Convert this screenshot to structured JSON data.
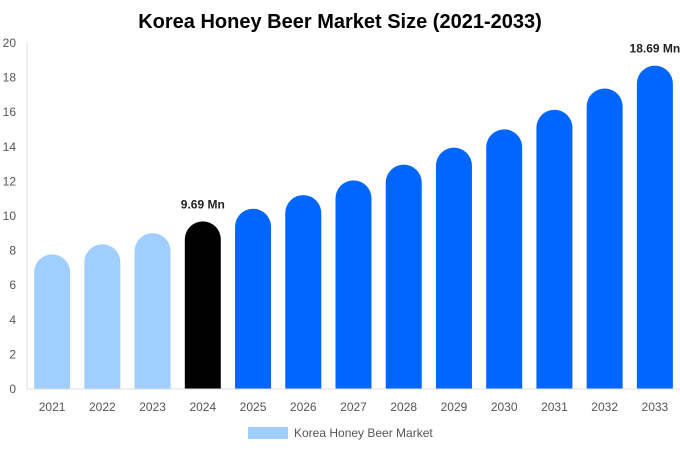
{
  "chart_data": {
    "type": "bar",
    "title": "Korea Honey Beer Market Size (2021-2033)",
    "xlabel": "",
    "ylabel": "",
    "ylim": [
      0,
      20
    ],
    "yticks": [
      0,
      2,
      4,
      6,
      8,
      10,
      12,
      14,
      16,
      18,
      20
    ],
    "grid": false,
    "legend_position": "bottom",
    "categories": [
      "2021",
      "2022",
      "2023",
      "2024",
      "2025",
      "2026",
      "2027",
      "2028",
      "2029",
      "2030",
      "2031",
      "2032",
      "2033"
    ],
    "series": [
      {
        "name": "Korea Honey Beer Market",
        "values": [
          7.78,
          8.37,
          9.01,
          9.69,
          10.42,
          11.21,
          12.06,
          12.97,
          13.95,
          15.01,
          16.14,
          17.37,
          18.69
        ]
      }
    ],
    "data_labels": {
      "3": "9.69 Mn",
      "12": "18.69 Mn"
    },
    "colors": {
      "historical": "#a0cfff",
      "base_year": "#000000",
      "forecast": "#0066ff",
      "legend_swatch": "#a0cfff"
    }
  }
}
